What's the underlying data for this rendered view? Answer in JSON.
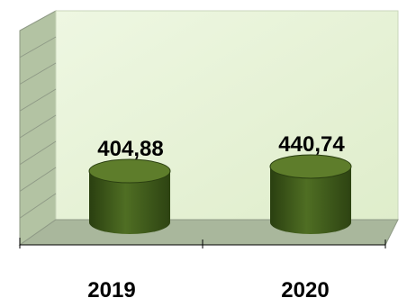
{
  "chart_data": {
    "type": "bar",
    "categories": [
      "2019",
      "2020"
    ],
    "values": [
      404.88,
      440.74
    ],
    "value_labels": [
      "404,88",
      "440,74"
    ],
    "title": "",
    "xlabel": "",
    "ylabel": "",
    "grid": true,
    "legend": "none",
    "colors": {
      "bar": "#3e5a1a",
      "bar_top": "#5e7d2b",
      "back_wall": "#e9f4d9",
      "side_wall": "#b3c3a3",
      "floor": "#a9b79c",
      "grid": "#8f9a86"
    }
  }
}
